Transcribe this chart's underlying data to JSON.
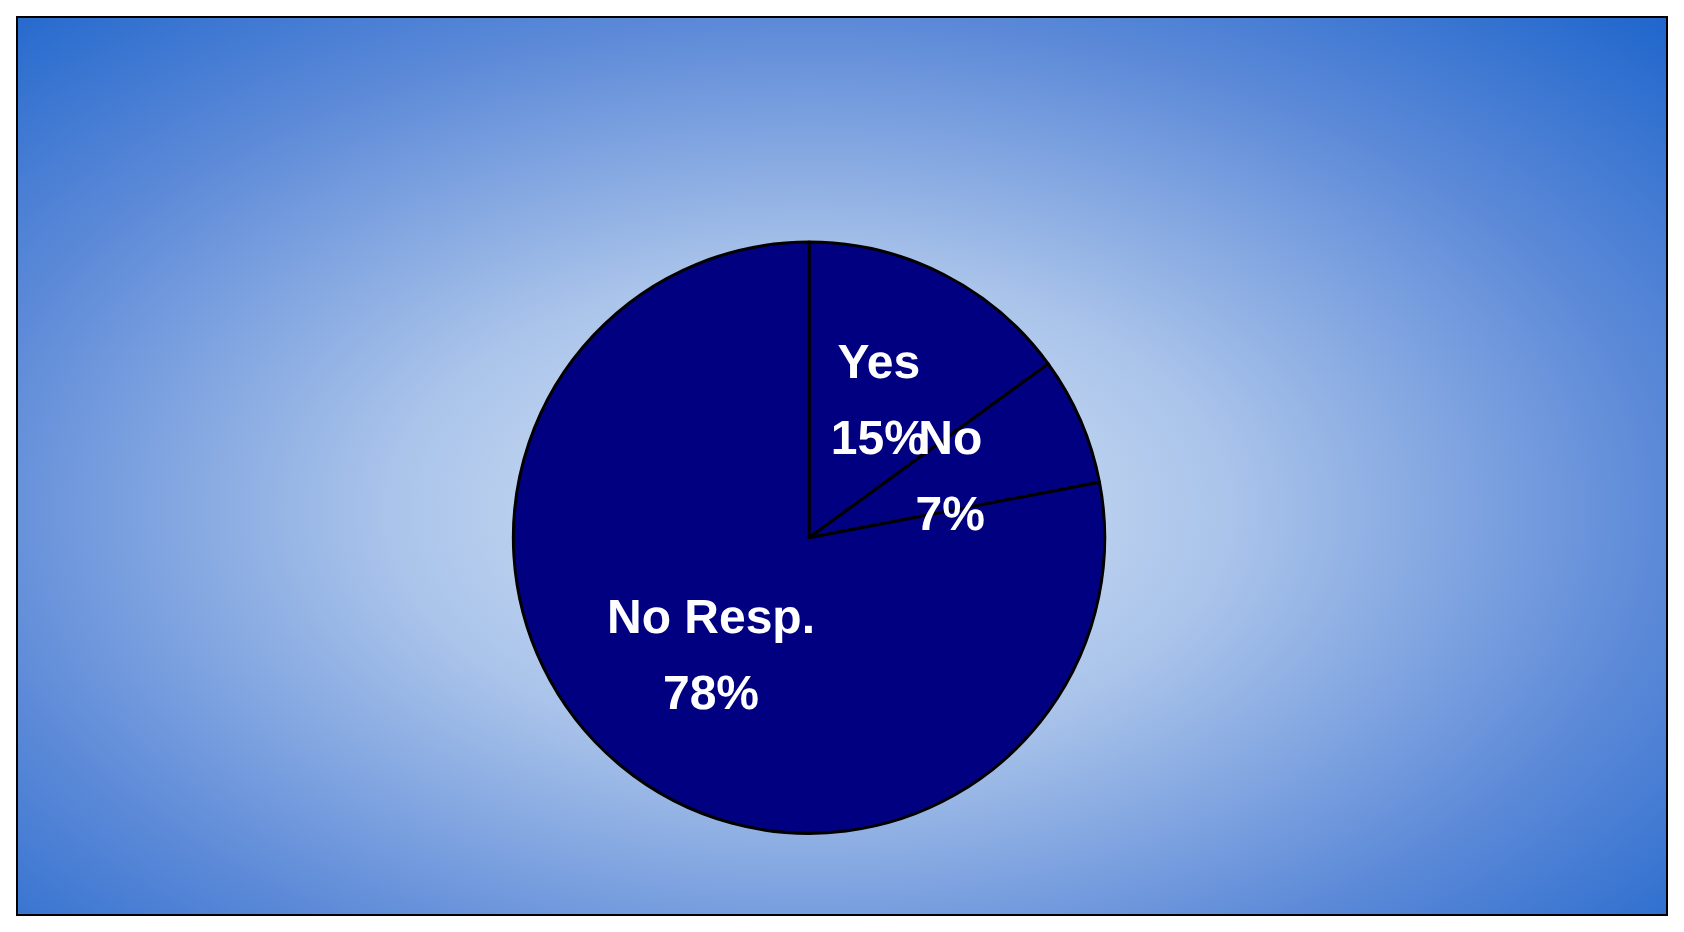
{
  "chart_data": {
    "type": "pie",
    "categories": [
      "Yes",
      "No",
      "No Resp."
    ],
    "values": [
      15,
      7,
      78
    ],
    "value_labels": [
      "15%",
      "7%",
      "78%"
    ],
    "colors": [
      "#000080",
      "#000080",
      "#000080"
    ]
  }
}
